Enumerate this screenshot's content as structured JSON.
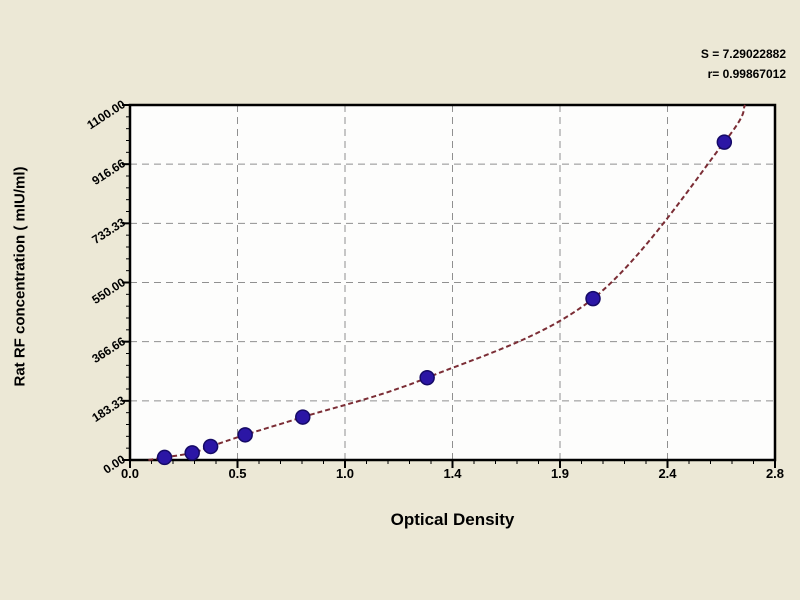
{
  "figure": {
    "background_color": "#ece8d6",
    "plot_background_color": "#fdfdfc",
    "grid_color": "#909090",
    "frame_color": "#000000",
    "annotation": {
      "line1": "S = 7.29022882",
      "line2": "r= 0.99867012"
    }
  },
  "chart_data": {
    "type": "scatter",
    "title": "",
    "xlabel": "Optical Density",
    "ylabel": "Rat RF concentration ( mIU/ml)",
    "xlim": [
      0,
      2.8
    ],
    "ylim": [
      0,
      1100
    ],
    "x_tick_labels": [
      "0.0",
      "0.5",
      "1.0",
      "1.4",
      "1.9",
      "2.4",
      "2.8"
    ],
    "y_tick_labels": [
      "0.00",
      "183.33",
      "366.66",
      "550.00",
      "733.33",
      "916.66",
      "1100.00"
    ],
    "minor_ticks_per_major": 5,
    "grid": "dashed",
    "legend": "none",
    "series": [
      {
        "name": "standard-points",
        "type": "scatter",
        "marker": "circle",
        "color": "#2b16a5",
        "marker_edge_color": "#150a66",
        "points": [
          {
            "x": 0.15,
            "y": 8
          },
          {
            "x": 0.27,
            "y": 22
          },
          {
            "x": 0.35,
            "y": 42
          },
          {
            "x": 0.5,
            "y": 78
          },
          {
            "x": 0.75,
            "y": 133
          },
          {
            "x": 1.29,
            "y": 255
          },
          {
            "x": 2.01,
            "y": 500
          },
          {
            "x": 2.58,
            "y": 985
          }
        ]
      },
      {
        "name": "fitted-curve",
        "type": "line",
        "style": "dashed",
        "color": "#7b2d35",
        "x_start": 0.08,
        "y_start": 0,
        "x_end": 2.67,
        "y_end": 1100
      }
    ]
  }
}
